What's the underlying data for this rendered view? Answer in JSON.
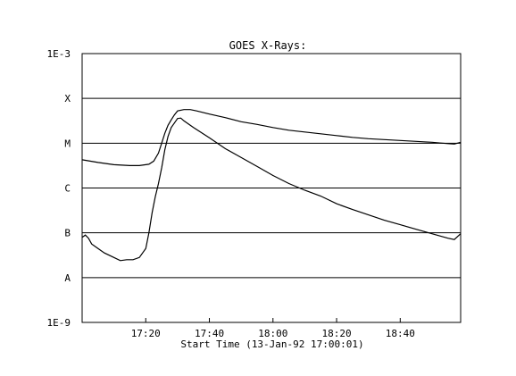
{
  "chart_data": {
    "type": "line",
    "title": "GOES X-Rays:",
    "xlabel": "Start Time (13-Jan-92 17:00:01)",
    "ylabel": "",
    "y_scale": "log",
    "y_tick_labels": [
      "1E-3",
      "X",
      "M",
      "C",
      "B",
      "A",
      "1E-9"
    ],
    "x_tick_labels": [
      "17:20",
      "17:40",
      "18:00",
      "18:20",
      "18:40"
    ],
    "x_range_minutes": [
      0,
      119
    ],
    "ylim_exponent": [
      -9,
      -3
    ],
    "grid": "horizontal",
    "series": [
      {
        "x_minutes": [
          0,
          5,
          10,
          15,
          18,
          21,
          22.5,
          24,
          25,
          26,
          27,
          28,
          29,
          30,
          32,
          34,
          36,
          40,
          45,
          50,
          55,
          60,
          65,
          70,
          75,
          80,
          85,
          90,
          95,
          100,
          105,
          110,
          115,
          117,
          119
        ],
        "log_flux": [
          -5.37,
          -5.43,
          -5.48,
          -5.5,
          -5.5,
          -5.47,
          -5.4,
          -5.22,
          -5.0,
          -4.78,
          -4.6,
          -4.48,
          -4.37,
          -4.28,
          -4.25,
          -4.25,
          -4.28,
          -4.35,
          -4.43,
          -4.52,
          -4.58,
          -4.65,
          -4.71,
          -4.75,
          -4.79,
          -4.83,
          -4.87,
          -4.9,
          -4.92,
          -4.94,
          -4.96,
          -4.98,
          -5.01,
          -5.02,
          -4.98
        ]
      },
      {
        "x_minutes": [
          0,
          1,
          2,
          3,
          5,
          7,
          10,
          12,
          14,
          16,
          18,
          20,
          21,
          22,
          23,
          24,
          25,
          26,
          27,
          28,
          29,
          30,
          31,
          32,
          35,
          40,
          45,
          50,
          55,
          60,
          65,
          70,
          75,
          80,
          85,
          90,
          95,
          100,
          105,
          110,
          115,
          117,
          119
        ],
        "log_flux": [
          -7.1,
          -7.05,
          -7.12,
          -7.25,
          -7.35,
          -7.45,
          -7.55,
          -7.62,
          -7.6,
          -7.6,
          -7.55,
          -7.35,
          -7.0,
          -6.55,
          -6.2,
          -5.9,
          -5.55,
          -5.15,
          -4.85,
          -4.65,
          -4.55,
          -4.45,
          -4.44,
          -4.5,
          -4.65,
          -4.88,
          -5.12,
          -5.32,
          -5.52,
          -5.72,
          -5.9,
          -6.05,
          -6.18,
          -6.35,
          -6.48,
          -6.6,
          -6.72,
          -6.82,
          -6.92,
          -7.02,
          -7.12,
          -7.15,
          -7.02
        ]
      }
    ]
  }
}
